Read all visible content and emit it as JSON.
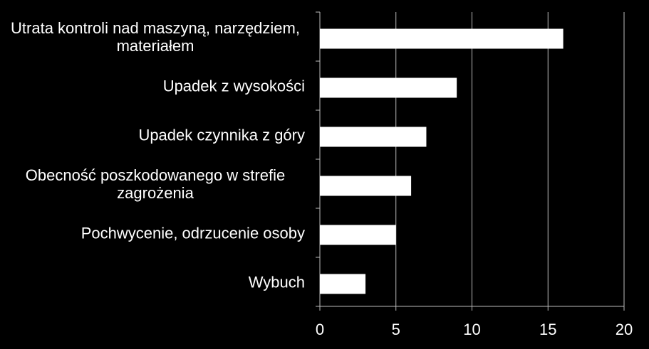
{
  "chart_data": {
    "type": "bar",
    "orientation": "horizontal",
    "categories": [
      "Utrata kontroli nad maszyną, narzędziem, materiałem",
      "Upadek z wysokości",
      "Upadek czynnika z góry",
      "Obecność poszkodowanego w strefie zagrożenia",
      "Pochwycenie, odrzucenie osoby",
      "Wybuch"
    ],
    "values": [
      16,
      9,
      7,
      6,
      5,
      3
    ],
    "color": "#ffffff",
    "xlim": [
      0,
      20
    ],
    "xticks": [
      0,
      5,
      10,
      15,
      20
    ],
    "grid": true
  }
}
